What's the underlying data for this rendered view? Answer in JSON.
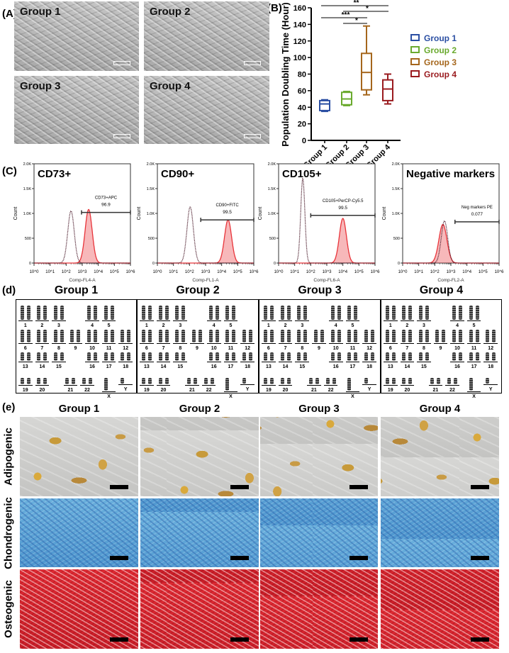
{
  "panel_labels": {
    "a": "(A)",
    "b": "(B)",
    "c": "(C)",
    "d": "(d)",
    "e": "(e)"
  },
  "panel_a": {
    "images": [
      {
        "label": "Group 1"
      },
      {
        "label": "Group 2"
      },
      {
        "label": "Group 3"
      },
      {
        "label": "Group 4"
      }
    ]
  },
  "chart_data": [
    {
      "type": "box",
      "ylabel": "Population Doubling Time (Hour)",
      "ylim": [
        0,
        160
      ],
      "yticks": [
        "0",
        "20",
        "40",
        "60",
        "80",
        "100",
        "120",
        "140",
        "160"
      ],
      "categories": [
        "Group 1",
        "Group 2",
        "Group 3",
        "Group 4"
      ],
      "colors": [
        "#2b4fa3",
        "#6aaa2e",
        "#a5661c",
        "#9a1b1f"
      ],
      "boxes": [
        {
          "min": 35,
          "q1": 36,
          "median": 44,
          "q3": 48,
          "max": 49
        },
        {
          "min": 42,
          "q1": 43,
          "median": 50,
          "q3": 58,
          "max": 59
        },
        {
          "min": 55,
          "q1": 61,
          "median": 82,
          "q3": 105,
          "max": 138
        },
        {
          "min": 44,
          "q1": 48,
          "median": 62,
          "q3": 73,
          "max": 80
        }
      ],
      "legend": {
        "position": "right",
        "entries": [
          "Group 1",
          "Group 2",
          "Group 3",
          "Group 4"
        ]
      },
      "significance": [
        {
          "from": "Group 1",
          "to": "Group 4",
          "label": "**"
        },
        {
          "from": "Group 2",
          "to": "Group 4",
          "label": "*"
        },
        {
          "from": "Group 1",
          "to": "Group 3",
          "label": "***"
        },
        {
          "from": "Group 2",
          "to": "Group 3",
          "label": "*"
        }
      ]
    },
    {
      "type": "histogram",
      "ylabel": "Count",
      "yticks": [
        "0",
        "500",
        "1.0K",
        "1.5K",
        "2.0K"
      ],
      "ylim": [
        0,
        2000
      ],
      "xscale": "log",
      "xlim": [
        1,
        1000000
      ],
      "xticks": [
        "10^0",
        "10^1",
        "10^2",
        "10^3",
        "10^4",
        "10^5",
        "10^6"
      ],
      "panels": [
        {
          "title": "CD73+",
          "xlabel": "Comp-FL4-A",
          "gate_label": "CD73+APC",
          "gate_value": "96.9",
          "gate_range": [
            900,
            1000000
          ],
          "isotype_peak": {
            "x": 200,
            "count": 1050
          },
          "stained_peak": {
            "x": 2500,
            "count": 1080
          }
        },
        {
          "title": "CD90+",
          "xlabel": "Comp-FL1-A",
          "gate_label": "CD90+FITC",
          "gate_value": "99.5",
          "gate_range": [
            500,
            1000000
          ],
          "isotype_peak": {
            "x": 110,
            "count": 1130
          },
          "stained_peak": {
            "x": 25000,
            "count": 870
          }
        },
        {
          "title": "CD105+",
          "xlabel": "Comp-FL6-A",
          "gate_label": "CD105+PerCP-Cy5.5",
          "gate_value": "99.5",
          "gate_range": [
            100,
            1000000
          ],
          "isotype_peak": {
            "x": 32,
            "count": 1700
          },
          "stained_peak": {
            "x": 10000,
            "count": 900
          }
        },
        {
          "title": "Negative markers",
          "xlabel": "Comp-FL2-A",
          "gate_label": "Neg markers PE",
          "gate_value": "0.077",
          "gate_range": [
            1800,
            1000000
          ],
          "isotype_peak": {
            "x": 400,
            "count": 850
          },
          "stained_peak": {
            "x": 320,
            "count": 780
          }
        }
      ],
      "colors": {
        "stained": "#e8343a",
        "isotype": "#4a1a2a"
      }
    }
  ],
  "panel_d": {
    "groups": [
      "Group 1",
      "Group 2",
      "Group 3",
      "Group 4"
    ],
    "rows": [
      [
        "1",
        "2",
        "3",
        "4",
        "5"
      ],
      [
        "6",
        "7",
        "8",
        "9",
        "10",
        "11",
        "12"
      ],
      [
        "13",
        "14",
        "15",
        "16",
        "17",
        "18"
      ],
      [
        "19",
        "20",
        "21",
        "22",
        "X",
        "Y"
      ]
    ]
  },
  "panel_e": {
    "columns": [
      "Group 1",
      "Group 2",
      "Group 3",
      "Group 4"
    ],
    "rows": [
      "Adipogenic",
      "Chondrogenic",
      "Osteogenic"
    ]
  }
}
